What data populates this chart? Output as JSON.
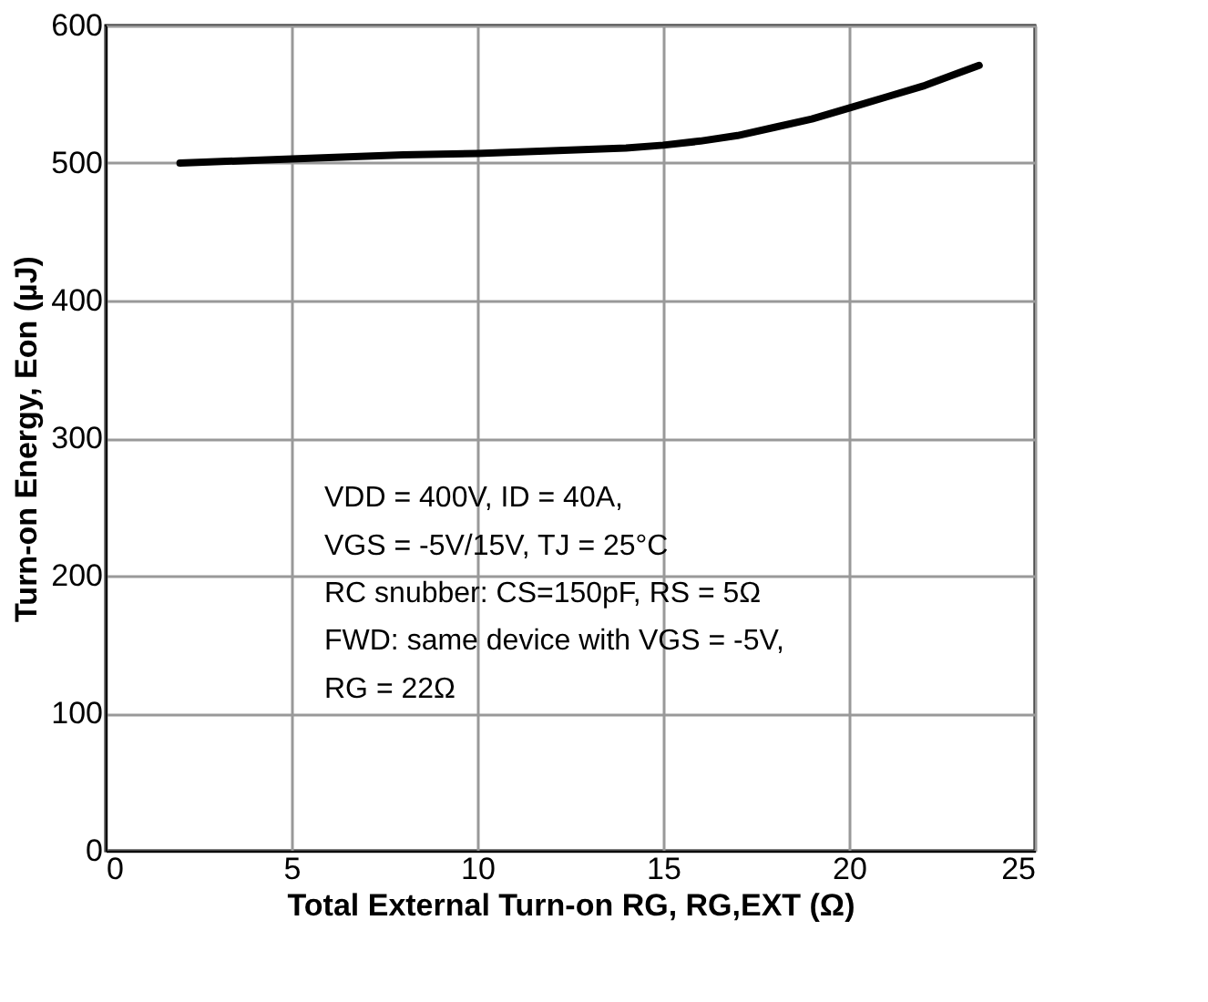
{
  "chart_data": {
    "type": "line",
    "xlabel": "Total External Turn-on RG, RG,EXT (Ω)",
    "ylabel": "Turn-on Energy, Eon (µJ)",
    "x": [
      2,
      4,
      6,
      8,
      10,
      12,
      13,
      14,
      15,
      16,
      17,
      18,
      19,
      20,
      21,
      22,
      23,
      23.5
    ],
    "series": [
      {
        "color": "#000000",
        "values": [
          500,
          502,
          504,
          506,
          507,
          509,
          510,
          511,
          513,
          516,
          520,
          526,
          532,
          540,
          548,
          556,
          566,
          571
        ]
      }
    ],
    "xlim": [
      0,
      25
    ],
    "xticks": [
      0,
      5,
      10,
      15,
      20,
      25
    ],
    "ylim": [
      0,
      600
    ],
    "yticks": [
      0,
      100,
      200,
      300,
      400,
      500,
      600
    ],
    "grid": true,
    "marker": "none",
    "line_style": "solid",
    "annotations": [
      "VDD = 400V, ID = 40A,",
      "VGS = -5V/15V, TJ = 25°C",
      "RC snubber: CS=150pF, RS = 5Ω",
      "FWD: same device with VGS = -5V,",
      "RG = 22Ω"
    ]
  }
}
